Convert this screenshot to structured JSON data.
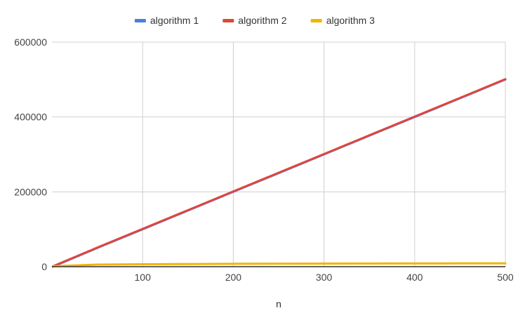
{
  "chart_data": {
    "type": "line",
    "title": "",
    "xlabel": "n",
    "ylabel": "",
    "x": [
      1,
      50,
      100,
      150,
      200,
      250,
      300,
      350,
      400,
      450,
      500
    ],
    "xlim": [
      0,
      500
    ],
    "ylim": [
      0,
      600000
    ],
    "xticks": [
      100,
      200,
      300,
      400,
      500
    ],
    "yticks": [
      0,
      200000,
      400000,
      600000
    ],
    "grid": true,
    "legend": "top",
    "series": [
      {
        "name": "algorithm 1",
        "color": "#4a7fe0",
        "values": [
          1,
          50000,
          100000,
          150000,
          200000,
          250000,
          300000,
          350000,
          400000,
          450000,
          500000
        ]
      },
      {
        "name": "algorithm 2",
        "color": "#e0463b",
        "values": [
          1000,
          51000,
          101000,
          151000,
          201000,
          251000,
          301000,
          351000,
          401000,
          451000,
          501000
        ]
      },
      {
        "name": "algorithm 3",
        "color": "#f4b400",
        "values": [
          1000,
          5600,
          6600,
          7200,
          7600,
          8000,
          8200,
          8400,
          8600,
          8800,
          9000
        ]
      }
    ]
  }
}
